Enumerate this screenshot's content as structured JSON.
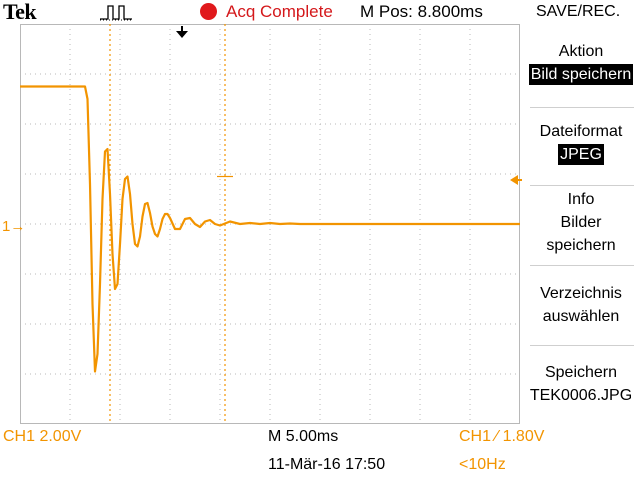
{
  "header": {
    "brand": "Tek",
    "trigger_icon": "pulse-trigger-icon",
    "acq_status": "Acq Complete",
    "m_pos": "M Pos: 8.800ms",
    "menu_title": "SAVE/REC."
  },
  "channel_marker": "1→",
  "side_menu": [
    {
      "lines": [
        "Aktion"
      ],
      "highlight": "Bild speichern"
    },
    {
      "lines": [
        "Dateiformat"
      ],
      "highlight": "JPEG"
    },
    {
      "lines": [
        "Info",
        "Bilder",
        "speichern"
      ],
      "highlight": ""
    },
    {
      "lines": [
        "Verzeichnis",
        "auswählen"
      ],
      "highlight": ""
    },
    {
      "lines": [
        "Speichern",
        "TEK0006.JPG"
      ],
      "highlight": ""
    }
  ],
  "footer": {
    "ch1_scale": "CH1  2.00V",
    "timebase": "M 5.00ms",
    "trigger": "CH1 ∕ 1.80V",
    "datetime": "11-Mär-16 17:50",
    "frequency": "<10Hz"
  },
  "colors": {
    "trace": "#f29400",
    "grid": "#b8b8b8",
    "acq": "#e0191c"
  },
  "chart_data": {
    "type": "line",
    "grid": true,
    "xlim": [
      0,
      10
    ],
    "ylim": [
      -4,
      4
    ],
    "x": [
      0,
      1.3,
      1.35,
      1.4,
      1.45,
      1.5,
      1.55,
      1.6,
      1.65,
      1.7,
      1.75,
      1.8,
      1.85,
      1.9,
      1.95,
      2.0,
      2.05,
      2.1,
      2.15,
      2.2,
      2.25,
      2.3,
      2.35,
      2.4,
      2.45,
      2.5,
      2.55,
      2.6,
      2.65,
      2.7,
      2.75,
      2.8,
      2.85,
      2.9,
      2.95,
      3.0,
      3.1,
      3.2,
      3.3,
      3.4,
      3.5,
      3.6,
      3.7,
      3.8,
      3.9,
      4.0,
      4.2,
      4.4,
      4.6,
      4.8,
      5.0,
      5.2,
      5.4,
      5.6,
      6.0,
      6.5,
      7.0,
      8.0,
      9.0,
      10.0
    ],
    "values": [
      2.75,
      2.75,
      2.5,
      0.8,
      -1.6,
      -2.95,
      -2.6,
      -1.2,
      0.5,
      1.45,
      1.5,
      0.6,
      -0.6,
      -1.3,
      -1.2,
      -0.4,
      0.5,
      0.9,
      0.95,
      0.6,
      0.0,
      -0.4,
      -0.45,
      -0.25,
      0.15,
      0.4,
      0.42,
      0.22,
      -0.05,
      -0.2,
      -0.25,
      -0.1,
      0.1,
      0.2,
      0.2,
      0.12,
      -0.1,
      -0.1,
      0.1,
      0.12,
      0.0,
      -0.06,
      0.05,
      0.08,
      0.0,
      -0.03,
      0.05,
      0.0,
      0.02,
      0.0,
      0.02,
      0.0,
      0.01,
      0.0,
      0.0,
      0.0,
      0.0,
      0.0,
      0.0,
      0.0
    ],
    "cursor1_x": 1.8,
    "cursor2_x": 4.1,
    "trigger_level": 0.95
  }
}
